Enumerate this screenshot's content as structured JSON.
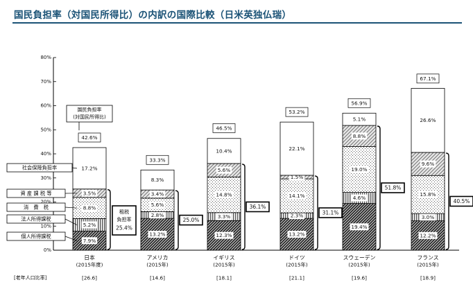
{
  "page": {
    "title": "国民負担率（対国民所得比）の内訳の国際比較（日米英独仏瑞）"
  },
  "chart_data": {
    "type": "bar",
    "subtype": "stacked",
    "ylim": [
      0,
      80
    ],
    "yticks": [
      "0%",
      "10%",
      "20%",
      "30%",
      "40%",
      "50%",
      "60%",
      "70%",
      "80%"
    ],
    "grid": false,
    "colors": {
      "line": "#000000",
      "total_fill": "#ffffff"
    },
    "layers": [
      {
        "key": "kojin",
        "name": "個人所得課税",
        "pattern": "dense-diagonal"
      },
      {
        "key": "hojin",
        "name": "法人所得課税",
        "pattern": "vertical-lines"
      },
      {
        "key": "shohi",
        "name": "消　費　税",
        "pattern": "dots"
      },
      {
        "key": "shisan",
        "name": "資 産 課 税 等",
        "pattern": "light-diagonal"
      },
      {
        "key": "shakai",
        "name": "社会保障負担率",
        "pattern": "white"
      }
    ],
    "countries": [
      {
        "name": "日本",
        "year": "(2015年度)",
        "elderly": "[26.6]",
        "values": [
          7.9,
          5.2,
          8.8,
          3.5,
          17.2
        ],
        "labels": [
          "7.9%",
          "5.2%",
          "8.8%",
          "3.5%",
          "17.2%"
        ],
        "total": 42.6,
        "total_label": "42.6%"
      },
      {
        "name": "アメリカ",
        "year": "(2015年)",
        "elderly": "[14.6]",
        "values": [
          13.2,
          2.8,
          5.6,
          3.4,
          8.3
        ],
        "labels": [
          "13.2%",
          "2.8%",
          "5.6%",
          "3.4%",
          "8.3%"
        ],
        "total": 33.3,
        "total_label": "33.3%",
        "tax_total": "25.0%"
      },
      {
        "name": "イギリス",
        "year": "(2015年)",
        "elderly": "[18.1]",
        "values": [
          12.3,
          3.3,
          14.8,
          5.6,
          10.4
        ],
        "labels": [
          "12.3%",
          "3.3%",
          "14.8%",
          "5.6%",
          "10.4%"
        ],
        "total": 46.5,
        "total_label": "46.5%",
        "tax_total": "36.1%"
      },
      {
        "name": "ドイツ",
        "year": "(2015年)",
        "elderly": "[21.1]",
        "values": [
          13.2,
          2.3,
          14.1,
          1.5,
          22.1
        ],
        "labels": [
          "13.2%",
          "2.3%",
          "14.1%",
          "1.5%",
          "22.1%"
        ],
        "total": 53.2,
        "total_label": "53.2%",
        "tax_total": "31.1%"
      },
      {
        "name": "スウェーデン",
        "year": "(2015年)",
        "elderly": "[19.6]",
        "values": [
          19.4,
          4.6,
          19.0,
          8.8,
          5.1
        ],
        "labels": [
          "19.4%",
          "4.6%",
          "19.0%",
          "8.8%",
          "5.1%"
        ],
        "total": 56.9,
        "total_label": "56.9%",
        "tax_total": "51.8%"
      },
      {
        "name": "フランス",
        "year": "(2015年)",
        "elderly": "[18.9]",
        "values": [
          12.2,
          3.0,
          15.8,
          9.6,
          26.6
        ],
        "labels": [
          "12.2%",
          "3.0%",
          "15.8%",
          "9.6%",
          "26.6%"
        ],
        "total": 67.1,
        "total_label": "67.1%",
        "tax_total": "40.5%"
      }
    ],
    "annotations": {
      "total_callout_line1": "国民負担率",
      "total_callout_line2": "(対国民所得比)",
      "japan_tax_line1": "租税",
      "japan_tax_line2": "負担率",
      "japan_tax_value": "25.4%",
      "elderly_label": "[老年人口比率]"
    }
  }
}
